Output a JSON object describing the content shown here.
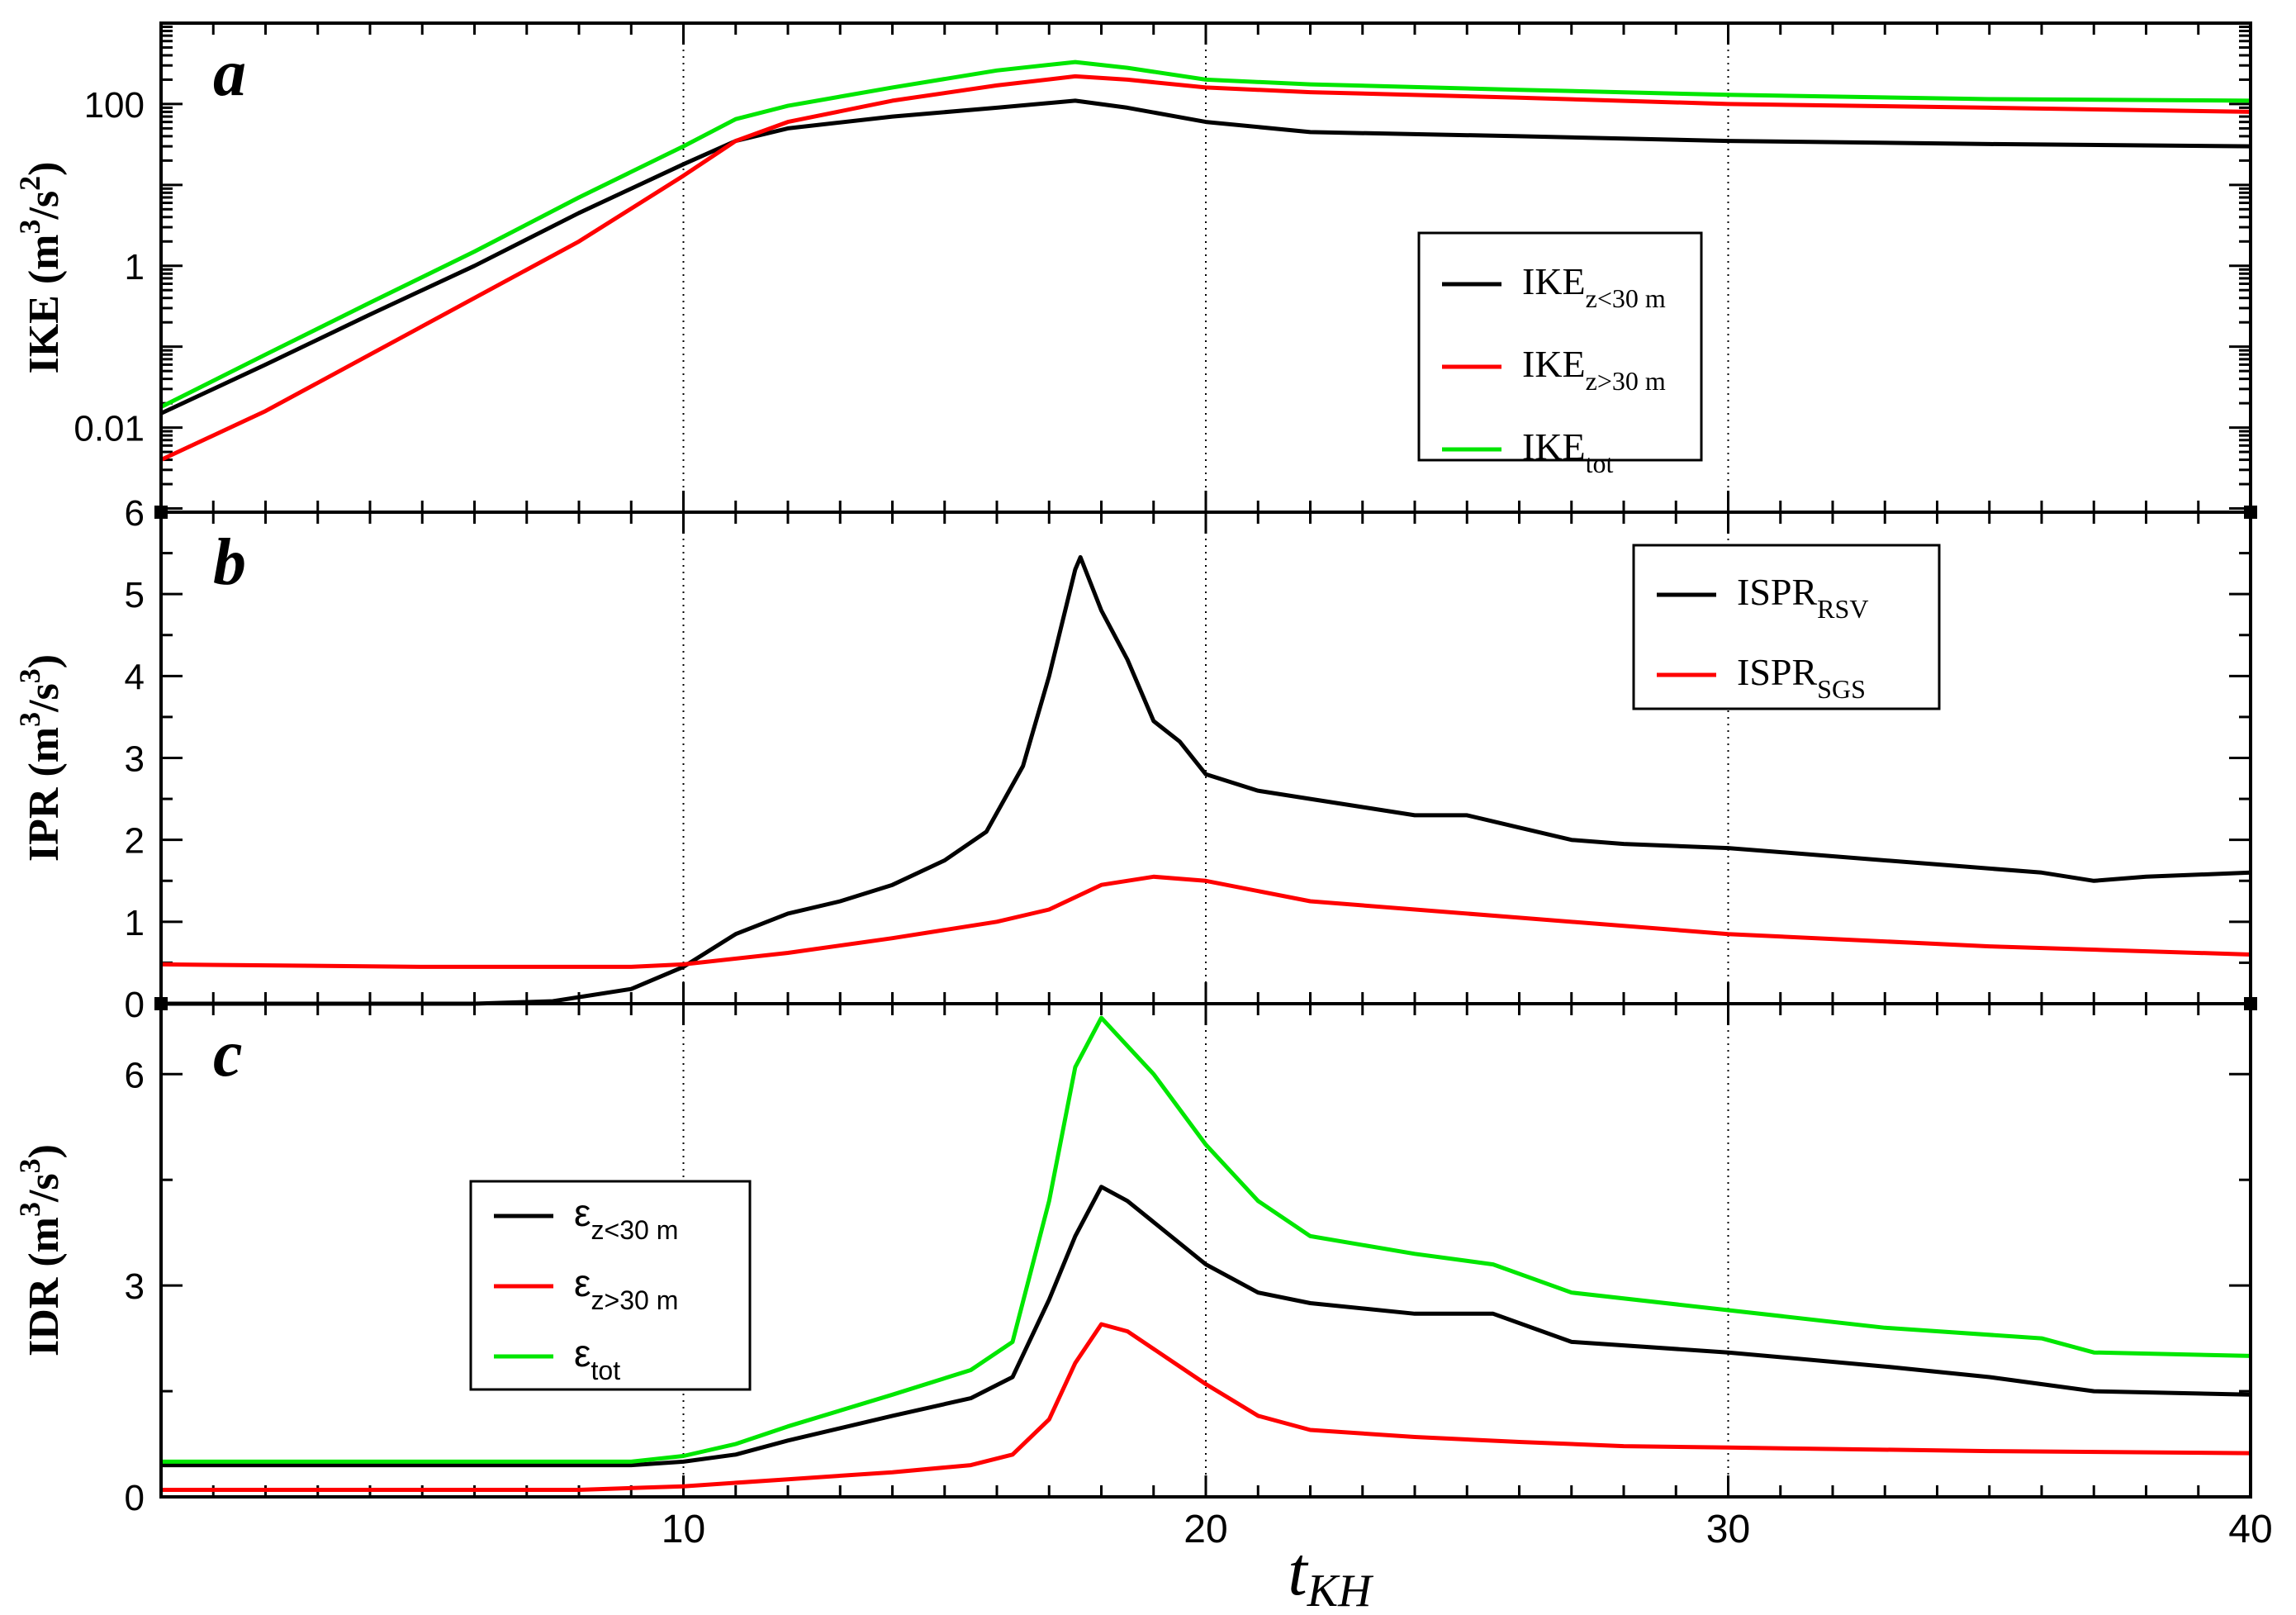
{
  "chart_data": {
    "type": "line",
    "shared_x": {
      "label": "t",
      "label_subscript": "KH",
      "range": [
        0,
        40
      ],
      "ticks": [
        10,
        20,
        30,
        40
      ],
      "tick_labels": [
        "10",
        "20",
        "30",
        "40"
      ],
      "vertical_guides": [
        10,
        20,
        30
      ]
    },
    "colors": {
      "black": "#000000",
      "red": "#ff0000",
      "green": "#00e600"
    },
    "panels": [
      {
        "id": "a",
        "letter": "a",
        "ylabel": {
          "main": "IKE (m",
          "sup1": "3",
          "mid": "/s",
          "sup2": "2",
          "end": ")"
        },
        "yscale": "log",
        "ylim": [
          0.0009,
          1000
        ],
        "yticks": [
          0.01,
          1,
          100
        ],
        "ytick_labels": [
          "0.01",
          "1",
          "100"
        ],
        "legend": {
          "placement": "center-right",
          "entries": [
            {
              "base": "IKE",
              "sub": "z<30 m",
              "color": "#000000"
            },
            {
              "base": "IKE",
              "sub": "z>30 m",
              "color": "#ff0000"
            },
            {
              "base": "IKE",
              "sub": "tot",
              "color": "#00e600"
            }
          ]
        },
        "series": [
          {
            "name": "IKE z<30 m",
            "color": "#000000",
            "x": [
              0,
              2,
              4,
              6,
              8,
              10,
              11,
              12,
              14,
              16,
              17.5,
              18.5,
              20,
              22,
              26,
              30,
              35,
              40
            ],
            "y": [
              0.015,
              0.06,
              0.25,
              1.0,
              4.5,
              18,
              35,
              50,
              70,
              90,
              110,
              90,
              60,
              45,
              40,
              35,
              32,
              30
            ]
          },
          {
            "name": "IKE z>30 m",
            "color": "#ff0000",
            "x": [
              0,
              2,
              4,
              6,
              8,
              10,
              11,
              12,
              14,
              16,
              17.5,
              18.5,
              20,
              22,
              26,
              30,
              35,
              40
            ],
            "y": [
              0.004,
              0.016,
              0.08,
              0.4,
              2.0,
              13,
              35,
              60,
              110,
              170,
              220,
              200,
              160,
              140,
              120,
              100,
              90,
              80
            ]
          },
          {
            "name": "IKE tot",
            "color": "#00e600",
            "x": [
              0,
              2,
              4,
              6,
              8,
              10,
              11,
              12,
              14,
              16,
              17.5,
              18.5,
              20,
              22,
              26,
              30,
              35,
              40
            ],
            "y": [
              0.018,
              0.08,
              0.35,
              1.5,
              7,
              30,
              65,
              95,
              160,
              260,
              330,
              280,
              200,
              175,
              150,
              130,
              115,
              110
            ]
          }
        ]
      },
      {
        "id": "b",
        "letter": "b",
        "ylabel": {
          "main": "IPR (m",
          "sup1": "3",
          "mid": "/s",
          "sup2": "3",
          "end": ")"
        },
        "yscale": "linear",
        "ylim": [
          0,
          6
        ],
        "yticks": [
          0,
          1,
          2,
          3,
          4,
          5,
          6
        ],
        "ytick_labels": [
          "0",
          "1",
          "2",
          "3",
          "4",
          "5",
          "6"
        ],
        "legend": {
          "placement": "top-right",
          "entries": [
            {
              "base": "ISPR",
              "sub": "RSV",
              "color": "#000000"
            },
            {
              "base": "ISPR",
              "sub": "SGS",
              "color": "#ff0000"
            }
          ]
        },
        "series": [
          {
            "name": "ISPR RSV",
            "color": "#000000",
            "x": [
              0,
              6,
              7.5,
              9,
              10,
              11,
              12,
              13,
              14,
              15,
              15.8,
              16.5,
              17,
              17.5,
              17.6,
              18,
              18.5,
              19,
              19.5,
              20,
              21,
              22,
              23,
              24,
              25,
              26,
              27,
              28,
              30,
              32,
              34,
              36,
              37,
              38,
              40
            ],
            "y": [
              0,
              0,
              0.03,
              0.18,
              0.45,
              0.85,
              1.1,
              1.25,
              1.45,
              1.75,
              2.1,
              2.9,
              4.0,
              5.3,
              5.45,
              4.8,
              4.2,
              3.45,
              3.2,
              2.8,
              2.6,
              2.5,
              2.4,
              2.3,
              2.3,
              2.15,
              2.0,
              1.95,
              1.9,
              1.8,
              1.7,
              1.6,
              1.5,
              1.55,
              1.6
            ]
          },
          {
            "name": "ISPR SGS",
            "color": "#ff0000",
            "x": [
              0,
              5,
              9,
              10,
              12,
              14,
              16,
              17,
              18,
              19,
              20,
              22,
              26,
              30,
              35,
              40
            ],
            "y": [
              0.48,
              0.45,
              0.45,
              0.48,
              0.62,
              0.8,
              1.0,
              1.15,
              1.45,
              1.55,
              1.5,
              1.25,
              1.05,
              0.85,
              0.7,
              0.6
            ]
          }
        ]
      },
      {
        "id": "c",
        "letter": "c",
        "ylabel": {
          "main": "IDR (m",
          "sup1": "3",
          "mid": "/s",
          "sup2": "3",
          "end": ")"
        },
        "yscale": "linear",
        "ylim": [
          0,
          7
        ],
        "yticks": [
          0,
          3,
          6
        ],
        "ytick_labels": [
          "0",
          "3",
          "6"
        ],
        "legend": {
          "placement": "center-left",
          "entries": [
            {
              "base": "ε",
              "sub": "z<30 m",
              "color": "#000000"
            },
            {
              "base": "ε",
              "sub": "z>30 m",
              "color": "#ff0000"
            },
            {
              "base": "ε",
              "sub": "tot",
              "color": "#00e600"
            }
          ]
        },
        "series": [
          {
            "name": "ε z<30 m",
            "color": "#000000",
            "x": [
              0,
              9,
              10,
              11,
              12,
              14,
              15.5,
              16.3,
              17,
              17.5,
              18,
              18.5,
              19,
              20,
              21,
              22,
              24,
              25.5,
              27,
              30,
              33,
              35,
              37,
              40
            ],
            "y": [
              0.45,
              0.45,
              0.5,
              0.6,
              0.8,
              1.15,
              1.4,
              1.7,
              2.8,
              3.7,
              4.4,
              4.2,
              3.9,
              3.3,
              2.9,
              2.75,
              2.6,
              2.6,
              2.2,
              2.05,
              1.85,
              1.7,
              1.5,
              1.45
            ]
          },
          {
            "name": "ε z>30 m",
            "color": "#ff0000",
            "x": [
              0,
              8,
              10,
              12,
              14,
              15.5,
              16.3,
              17,
              17.5,
              18,
              18.5,
              19,
              20,
              21,
              22,
              24,
              26,
              28,
              30,
              35,
              40
            ],
            "y": [
              0.1,
              0.1,
              0.15,
              0.25,
              0.35,
              0.45,
              0.6,
              1.1,
              1.9,
              2.45,
              2.35,
              2.1,
              1.6,
              1.15,
              0.95,
              0.85,
              0.78,
              0.72,
              0.7,
              0.65,
              0.62
            ]
          },
          {
            "name": "ε tot",
            "color": "#00e600",
            "x": [
              0,
              9,
              10,
              11,
              12,
              14,
              15.5,
              16.3,
              17,
              17.5,
              18,
              18.5,
              19,
              20,
              21,
              22,
              24,
              25.5,
              27,
              30,
              33,
              36,
              37,
              40
            ],
            "y": [
              0.5,
              0.5,
              0.58,
              0.75,
              1.0,
              1.45,
              1.8,
              2.2,
              4.2,
              6.1,
              6.8,
              6.4,
              6.0,
              5.0,
              4.2,
              3.7,
              3.45,
              3.3,
              2.9,
              2.65,
              2.4,
              2.25,
              2.05,
              2.0
            ]
          }
        ]
      }
    ]
  }
}
